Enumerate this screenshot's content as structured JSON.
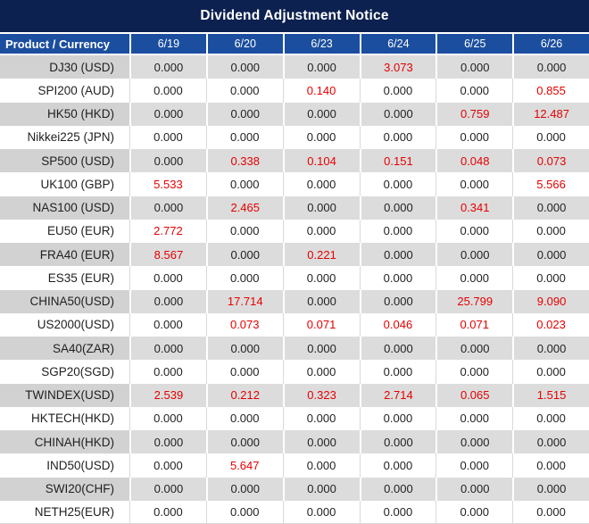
{
  "title": "Dividend Adjustment Notice",
  "table": {
    "product_header": "Product / Currency",
    "columns": [
      "6/19",
      "6/20",
      "6/23",
      "6/24",
      "6/25",
      "6/26"
    ],
    "rows": [
      {
        "label": "DJ30 (USD)",
        "values": [
          "0.000",
          "0.000",
          "0.000",
          "3.073",
          "0.000",
          "0.000"
        ],
        "red": [
          false,
          false,
          false,
          true,
          false,
          false
        ]
      },
      {
        "label": "SPI200 (AUD)",
        "values": [
          "0.000",
          "0.000",
          "0.140",
          "0.000",
          "0.000",
          "0.855"
        ],
        "red": [
          false,
          false,
          true,
          false,
          false,
          true
        ]
      },
      {
        "label": "HK50 (HKD)",
        "values": [
          "0.000",
          "0.000",
          "0.000",
          "0.000",
          "0.759",
          "12.487"
        ],
        "red": [
          false,
          false,
          false,
          false,
          true,
          true
        ]
      },
      {
        "label": "Nikkei225 (JPN)",
        "values": [
          "0.000",
          "0.000",
          "0.000",
          "0.000",
          "0.000",
          "0.000"
        ],
        "red": [
          false,
          false,
          false,
          false,
          false,
          false
        ]
      },
      {
        "label": "SP500 (USD)",
        "values": [
          "0.000",
          "0.338",
          "0.104",
          "0.151",
          "0.048",
          "0.073"
        ],
        "red": [
          false,
          true,
          true,
          true,
          true,
          true
        ]
      },
      {
        "label": "UK100 (GBP)",
        "values": [
          "5.533",
          "0.000",
          "0.000",
          "0.000",
          "0.000",
          "5.566"
        ],
        "red": [
          true,
          false,
          false,
          false,
          false,
          true
        ]
      },
      {
        "label": "NAS100 (USD)",
        "values": [
          "0.000",
          "2.465",
          "0.000",
          "0.000",
          "0.341",
          "0.000"
        ],
        "red": [
          false,
          true,
          false,
          false,
          true,
          false
        ]
      },
      {
        "label": "EU50 (EUR)",
        "values": [
          "2.772",
          "0.000",
          "0.000",
          "0.000",
          "0.000",
          "0.000"
        ],
        "red": [
          true,
          false,
          false,
          false,
          false,
          false
        ]
      },
      {
        "label": "FRA40 (EUR)",
        "values": [
          "8.567",
          "0.000",
          "0.221",
          "0.000",
          "0.000",
          "0.000"
        ],
        "red": [
          true,
          false,
          true,
          false,
          false,
          false
        ]
      },
      {
        "label": "ES35 (EUR)",
        "values": [
          "0.000",
          "0.000",
          "0.000",
          "0.000",
          "0.000",
          "0.000"
        ],
        "red": [
          false,
          false,
          false,
          false,
          false,
          false
        ]
      },
      {
        "label": "CHINA50(USD)",
        "values": [
          "0.000",
          "17.714",
          "0.000",
          "0.000",
          "25.799",
          "9.090"
        ],
        "red": [
          false,
          true,
          false,
          false,
          true,
          true
        ]
      },
      {
        "label": "US2000(USD)",
        "values": [
          "0.000",
          "0.073",
          "0.071",
          "0.046",
          "0.071",
          "0.023"
        ],
        "red": [
          false,
          true,
          true,
          true,
          true,
          true
        ]
      },
      {
        "label": "SA40(ZAR)",
        "values": [
          "0.000",
          "0.000",
          "0.000",
          "0.000",
          "0.000",
          "0.000"
        ],
        "red": [
          false,
          false,
          false,
          false,
          false,
          false
        ]
      },
      {
        "label": "SGP20(SGD)",
        "values": [
          "0.000",
          "0.000",
          "0.000",
          "0.000",
          "0.000",
          "0.000"
        ],
        "red": [
          false,
          false,
          false,
          false,
          false,
          false
        ]
      },
      {
        "label": "TWINDEX(USD)",
        "values": [
          "2.539",
          "0.212",
          "0.323",
          "2.714",
          "0.065",
          "1.515"
        ],
        "red": [
          true,
          true,
          true,
          true,
          true,
          true
        ]
      },
      {
        "label": "HKTECH(HKD)",
        "values": [
          "0.000",
          "0.000",
          "0.000",
          "0.000",
          "0.000",
          "0.000"
        ],
        "red": [
          false,
          false,
          false,
          false,
          false,
          false
        ]
      },
      {
        "label": "CHINAH(HKD)",
        "values": [
          "0.000",
          "0.000",
          "0.000",
          "0.000",
          "0.000",
          "0.000"
        ],
        "red": [
          false,
          false,
          false,
          false,
          false,
          false
        ]
      },
      {
        "label": "IND50(USD)",
        "values": [
          "0.000",
          "5.647",
          "0.000",
          "0.000",
          "0.000",
          "0.000"
        ],
        "red": [
          false,
          true,
          false,
          false,
          false,
          false
        ]
      },
      {
        "label": "SWI20(CHF)",
        "values": [
          "0.000",
          "0.000",
          "0.000",
          "0.000",
          "0.000",
          "0.000"
        ],
        "red": [
          false,
          false,
          false,
          false,
          false,
          false
        ]
      },
      {
        "label": "NETH25(EUR)",
        "values": [
          "0.000",
          "0.000",
          "0.000",
          "0.000",
          "0.000",
          "0.000"
        ],
        "red": [
          false,
          false,
          false,
          false,
          false,
          false
        ]
      }
    ]
  },
  "colors": {
    "title_bg": "#0d2150",
    "header_bg": "#1b4e9e",
    "alt_product_bg": "#d2d2d2",
    "alt_value_bg": "#dcdcdc",
    "grid_light": "#d9d9d9",
    "red": "#e60000",
    "text": "#1f1f1f"
  }
}
